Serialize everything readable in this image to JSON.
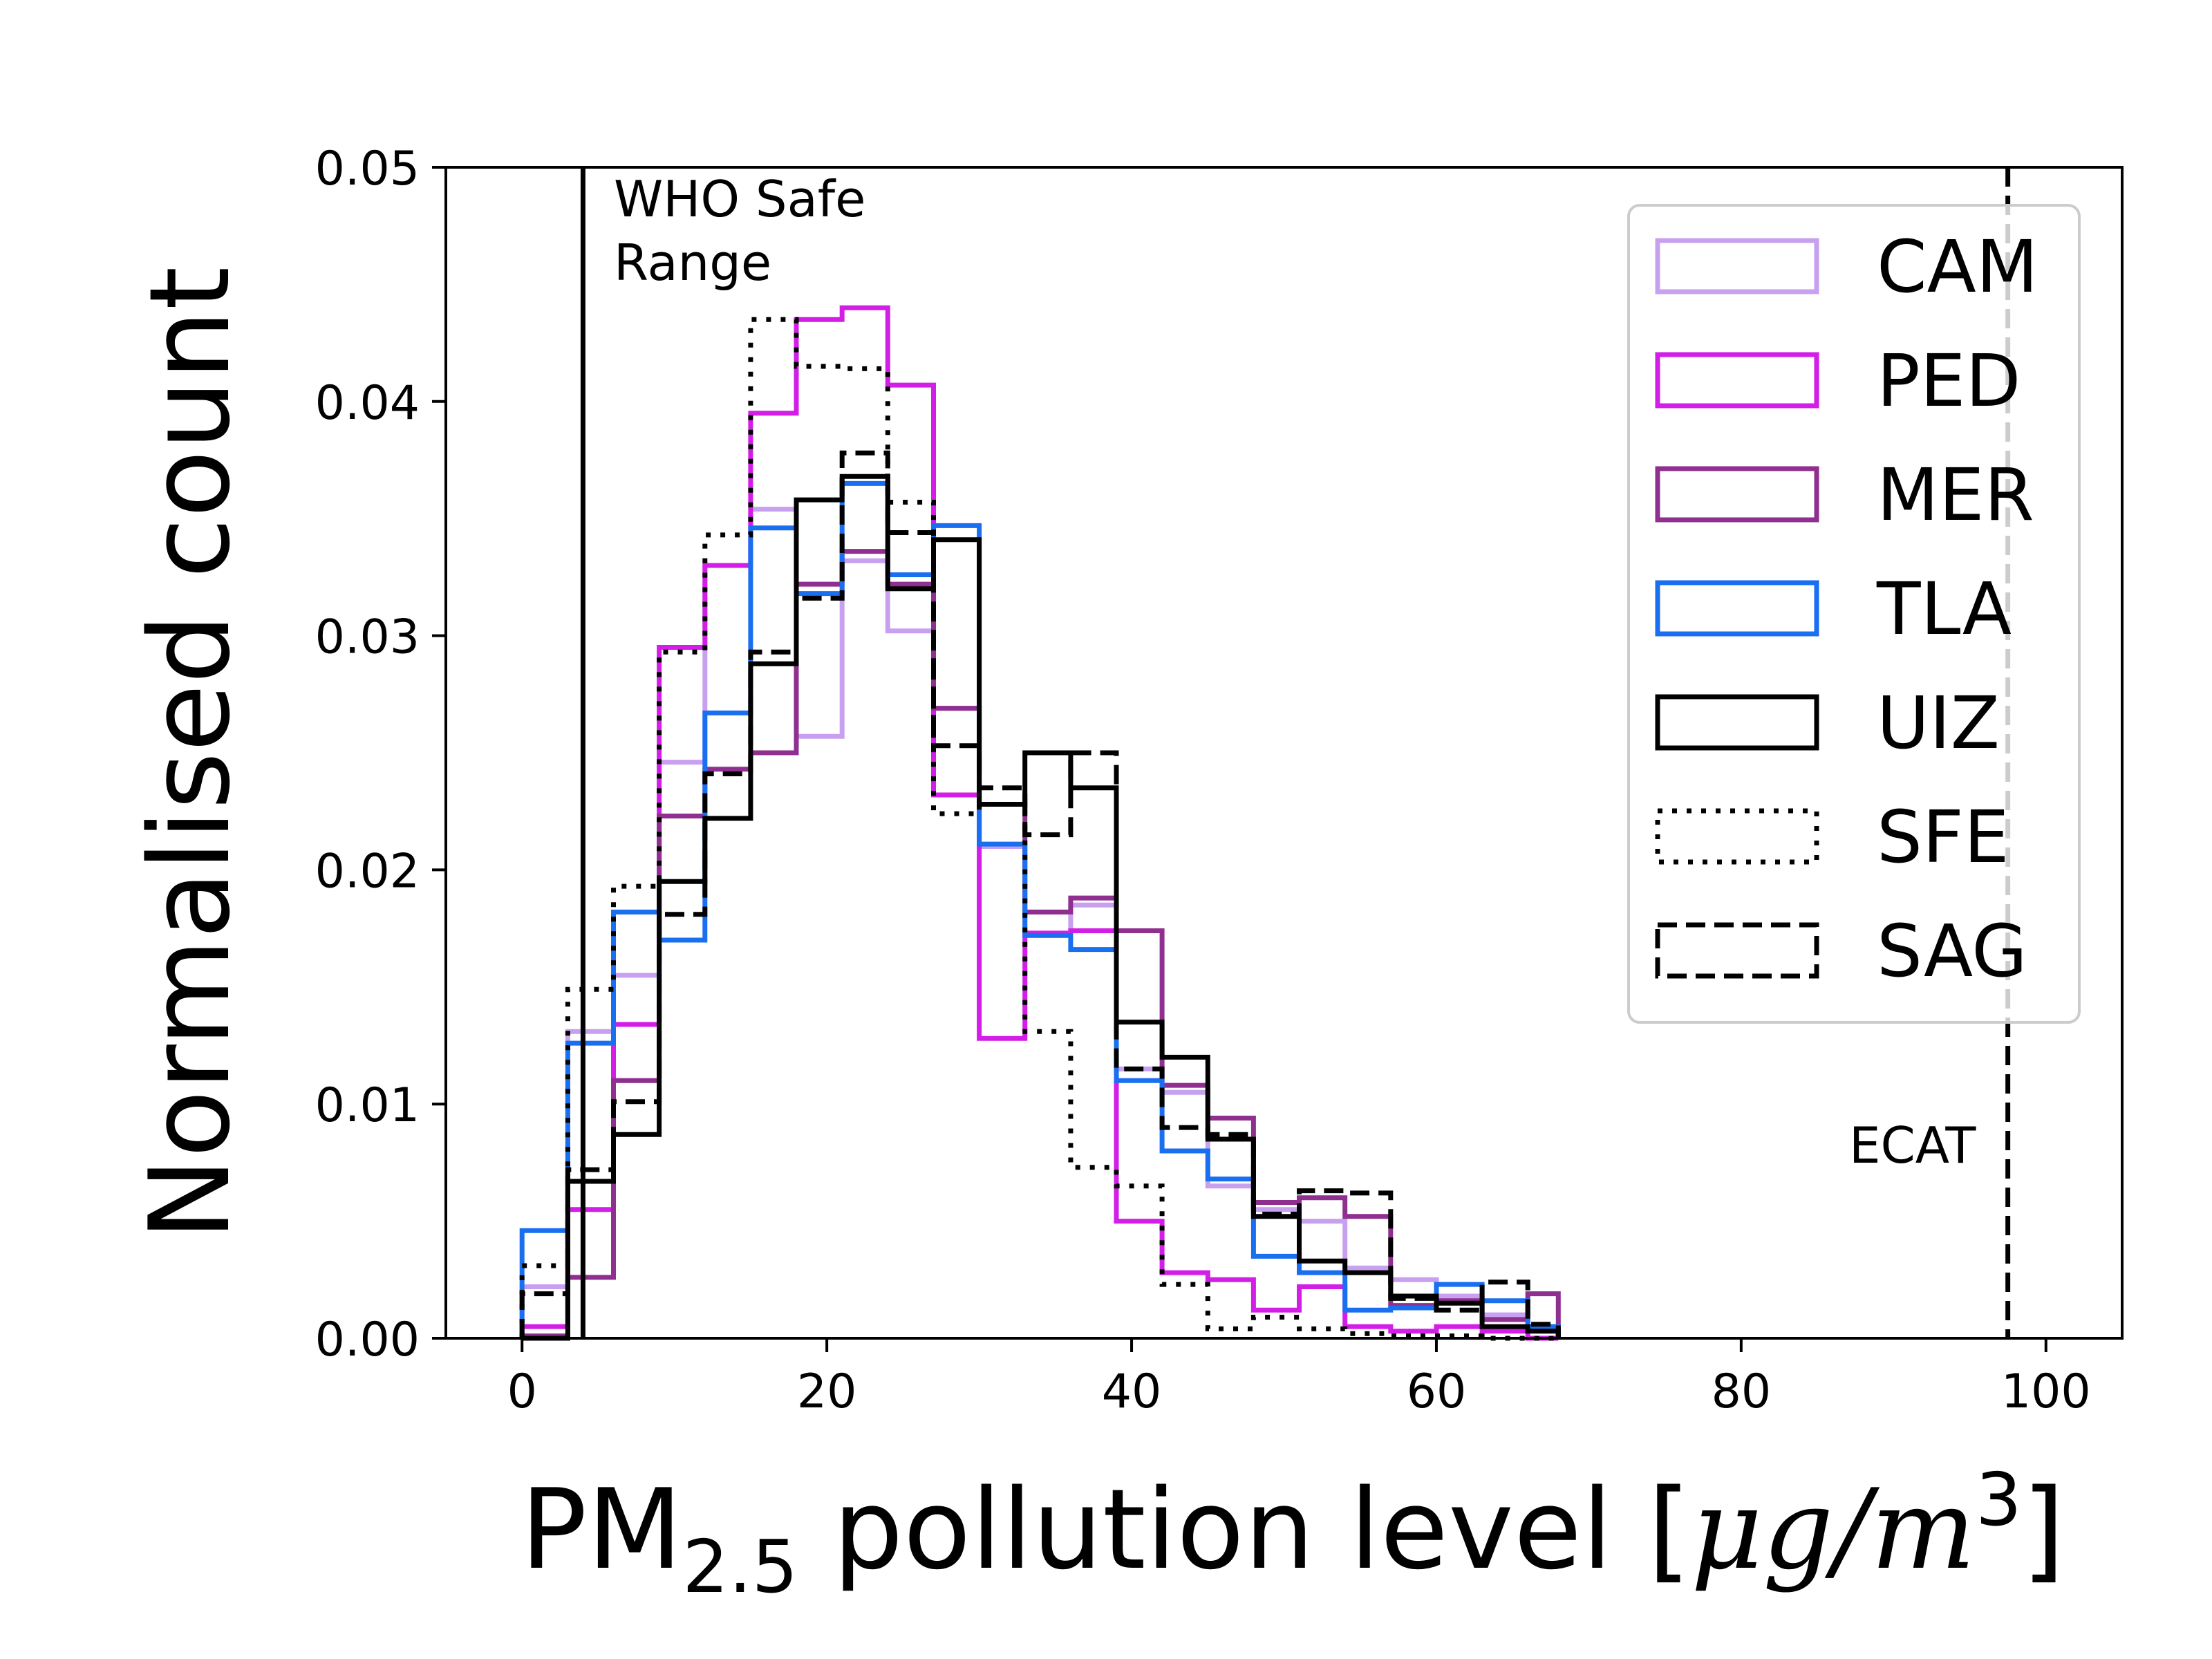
{
  "chart_data": {
    "type": "histogram",
    "xlabel_main": "PM",
    "xlabel_sub": "2.5",
    "xlabel_rest": " pollution level [",
    "xlabel_unit": "μg/m",
    "xlabel_sup": "3",
    "xlabel_close": "]",
    "ylabel": "Normalised count",
    "xlim": [
      -5,
      105
    ],
    "ylim": [
      0,
      0.05
    ],
    "x_ticks": [
      0,
      20,
      40,
      60,
      80,
      100
    ],
    "x_tick_labels": [
      "0",
      "20",
      "40",
      "60",
      "80",
      "100"
    ],
    "y_ticks": [
      0,
      0.01,
      0.02,
      0.03,
      0.04,
      0.05
    ],
    "y_tick_labels": [
      "0.00",
      "0.01",
      "0.02",
      "0.03",
      "0.04",
      "0.05"
    ],
    "bin_edges": [
      0,
      3,
      6,
      9,
      12,
      15,
      18,
      21,
      24,
      27,
      30,
      33,
      36,
      39,
      42,
      45,
      48,
      51,
      54,
      57,
      60,
      63,
      66,
      68
    ],
    "reference_lines": [
      {
        "name": "WHO",
        "x": 4,
        "style": "solid",
        "label_line1": "WHO Safe",
        "label_line2": "Range"
      },
      {
        "name": "ECAT",
        "x": 97.5,
        "style": "dashed",
        "label": "ECAT"
      }
    ],
    "series": [
      {
        "name": "CAM",
        "color": "#c8a0f0",
        "dash": "solid",
        "values": [
          0.0022,
          0.0131,
          0.0155,
          0.0246,
          0.033,
          0.0354,
          0.0257,
          0.0332,
          0.0302,
          0.0269,
          0.021,
          0.0172,
          0.0185,
          0.0115,
          0.0105,
          0.0065,
          0.0055,
          0.005,
          0.003,
          0.0025,
          0.0018,
          0.001,
          0.0005
        ]
      },
      {
        "name": "PED",
        "color": "#d21ee6",
        "dash": "solid",
        "values": [
          0.0005,
          0.0055,
          0.0134,
          0.0295,
          0.033,
          0.0395,
          0.0435,
          0.044,
          0.0407,
          0.0232,
          0.0128,
          0.0173,
          0.0174,
          0.005,
          0.0028,
          0.0025,
          0.0012,
          0.0022,
          0.0005,
          0.0003,
          0.0005,
          0.0003,
          0.0
        ]
      },
      {
        "name": "MER",
        "color": "#8f2f8f",
        "dash": "solid",
        "values": [
          0.0001,
          0.0026,
          0.011,
          0.0223,
          0.0243,
          0.025,
          0.0322,
          0.0336,
          0.0322,
          0.0269,
          0.0228,
          0.0182,
          0.0188,
          0.0174,
          0.0108,
          0.0094,
          0.0058,
          0.006,
          0.0052,
          0.0014,
          0.0016,
          0.0008,
          0.0019
        ]
      },
      {
        "name": "TLA",
        "color": "#1a6ef0",
        "dash": "solid",
        "values": [
          0.0046,
          0.0126,
          0.0182,
          0.017,
          0.0267,
          0.0346,
          0.0318,
          0.0365,
          0.0326,
          0.0347,
          0.0211,
          0.0172,
          0.0166,
          0.011,
          0.008,
          0.0068,
          0.0035,
          0.0028,
          0.0012,
          0.0013,
          0.0023,
          0.0016,
          0.0005
        ]
      },
      {
        "name": "UIZ",
        "color": "#000000",
        "dash": "solid",
        "values": [
          0.0,
          0.0067,
          0.0087,
          0.0195,
          0.0222,
          0.0288,
          0.0358,
          0.0368,
          0.032,
          0.0341,
          0.0228,
          0.025,
          0.0235,
          0.0135,
          0.012,
          0.0085,
          0.0052,
          0.0033,
          0.0028,
          0.0018,
          0.0015,
          0.0005,
          0.0003
        ]
      },
      {
        "name": "SFE",
        "color": "#000000",
        "dash": "dotted",
        "values": [
          0.0031,
          0.0149,
          0.0193,
          0.0293,
          0.0343,
          0.0435,
          0.0415,
          0.0414,
          0.0357,
          0.0224,
          0.0228,
          0.0131,
          0.0073,
          0.0065,
          0.0023,
          0.0004,
          0.0009,
          0.0004,
          0.0002,
          0.0001,
          0.0001,
          0.0,
          0.0
        ]
      },
      {
        "name": "SAG",
        "color": "#000000",
        "dash": "dashed",
        "values": [
          0.0019,
          0.0072,
          0.0101,
          0.0181,
          0.0241,
          0.0293,
          0.0316,
          0.0378,
          0.0344,
          0.0253,
          0.0235,
          0.0215,
          0.025,
          0.0115,
          0.009,
          0.0087,
          0.0053,
          0.0063,
          0.0062,
          0.0017,
          0.0012,
          0.0024,
          0.0006
        ]
      }
    ],
    "legend_position": "upper right"
  }
}
